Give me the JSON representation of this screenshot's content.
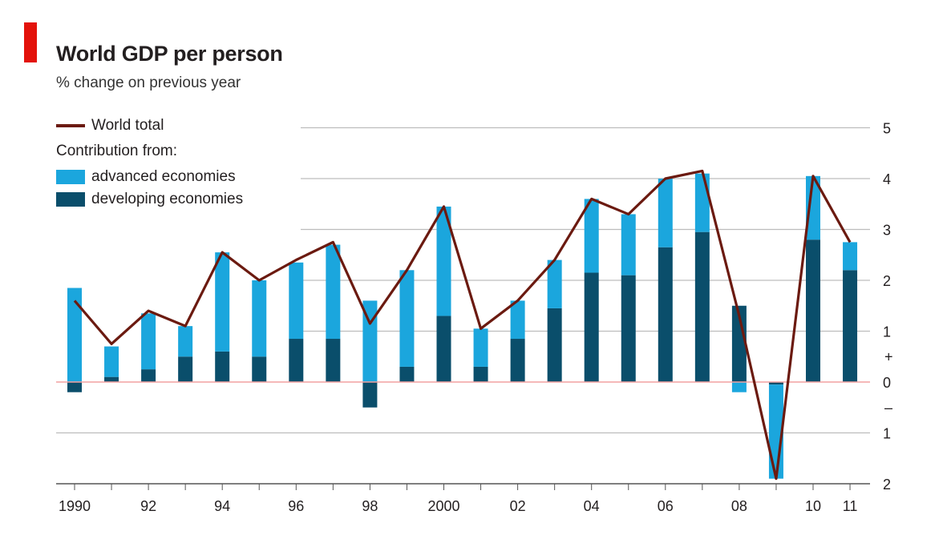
{
  "header": {
    "title": "World GDP per person",
    "subtitle": "% change on previous year",
    "accent_color": "#e3120b"
  },
  "legend": {
    "line_label": "World total",
    "contribution_label": "Contribution from:",
    "advanced_label": "advanced economies",
    "developing_label": "developing economies"
  },
  "colors": {
    "advanced": "#1ba6dd",
    "developing": "#0a4e6b",
    "line": "#6b1a10",
    "zero_line": "#f2a0a0",
    "grid": "#bdbdbd"
  },
  "chart_data": {
    "type": "bar",
    "stacked": true,
    "title": "World GDP per person",
    "subtitle": "% change on previous year",
    "x_years": [
      1990,
      1991,
      1992,
      1993,
      1994,
      1995,
      1996,
      1997,
      1998,
      1999,
      2000,
      2001,
      2002,
      2003,
      2004,
      2005,
      2006,
      2007,
      2008,
      2009,
      2010,
      2011
    ],
    "x_tick_labels": [
      {
        "year": 1990,
        "label": "1990"
      },
      {
        "year": 1992,
        "label": "92"
      },
      {
        "year": 1994,
        "label": "94"
      },
      {
        "year": 1996,
        "label": "96"
      },
      {
        "year": 1998,
        "label": "98"
      },
      {
        "year": 2000,
        "label": "2000"
      },
      {
        "year": 2002,
        "label": "02"
      },
      {
        "year": 2004,
        "label": "04"
      },
      {
        "year": 2006,
        "label": "06"
      },
      {
        "year": 2008,
        "label": "08"
      },
      {
        "year": 2010,
        "label": "10"
      },
      {
        "year": 2011,
        "label": "11"
      }
    ],
    "series": [
      {
        "name": "developing economies",
        "values": [
          -0.2,
          0.1,
          0.25,
          0.5,
          0.6,
          0.5,
          0.85,
          0.85,
          -0.5,
          0.3,
          1.3,
          0.3,
          0.85,
          1.45,
          2.15,
          2.1,
          2.65,
          2.95,
          1.5,
          -0.05,
          2.8,
          2.2
        ]
      },
      {
        "name": "advanced economies",
        "values": [
          1.85,
          0.6,
          1.1,
          0.6,
          1.95,
          1.5,
          1.5,
          1.85,
          1.6,
          1.9,
          2.15,
          0.75,
          0.75,
          0.95,
          1.45,
          1.2,
          1.35,
          1.15,
          -0.2,
          -1.85,
          1.25,
          0.55
        ]
      },
      {
        "name": "World total",
        "type": "line",
        "values": [
          1.6,
          0.75,
          1.4,
          1.1,
          2.55,
          2.0,
          2.4,
          2.75,
          1.15,
          2.2,
          3.45,
          1.05,
          1.6,
          2.4,
          3.6,
          3.3,
          4.0,
          4.15,
          1.3,
          -1.9,
          4.05,
          2.75
        ]
      }
    ],
    "y_ticks": [
      {
        "value": 5,
        "label": "5"
      },
      {
        "value": 4,
        "label": "4"
      },
      {
        "value": 3,
        "label": "3"
      },
      {
        "value": 2,
        "label": "2"
      },
      {
        "value": 1,
        "label": "1"
      },
      {
        "value": 0,
        "label": "0"
      },
      {
        "value": -1,
        "label": "1"
      },
      {
        "value": -2,
        "label": "2"
      }
    ],
    "sign_markers": {
      "plus": "+",
      "minus": "–"
    },
    "ylim": [
      -2,
      5
    ],
    "y_axis_position": "right",
    "grid": true,
    "legend_position": "top-left"
  }
}
